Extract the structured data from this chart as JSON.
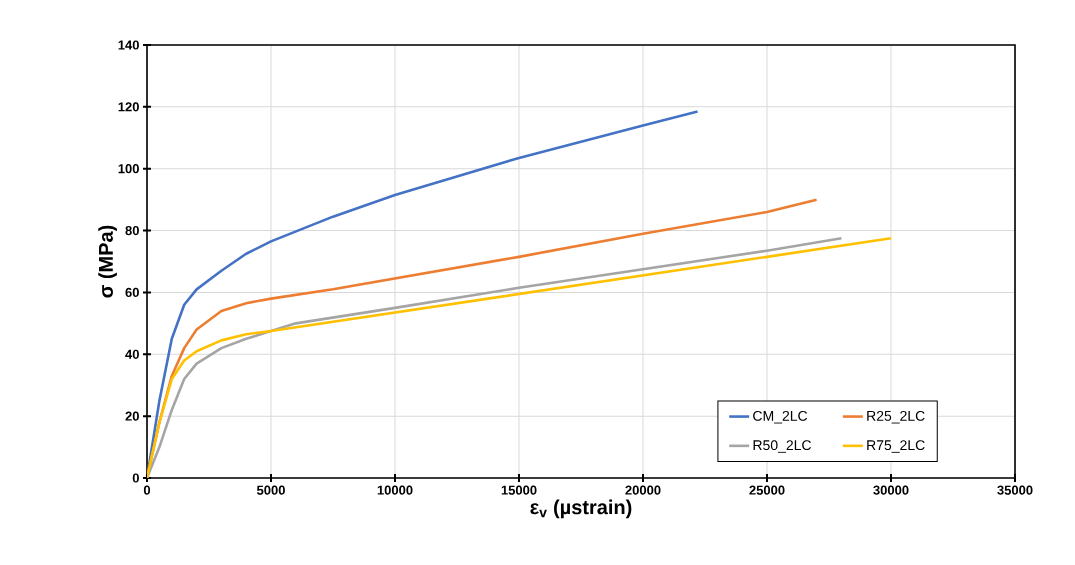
{
  "chart_data": {
    "type": "line",
    "xlabel": "ε$_{v}$ (µstrain)",
    "ylabel": "σ (MPa)",
    "xlim": [
      0,
      35000
    ],
    "ylim": [
      0,
      140
    ],
    "xticks": [
      0,
      5000,
      10000,
      15000,
      20000,
      25000,
      30000,
      35000
    ],
    "yticks": [
      0,
      20,
      40,
      60,
      80,
      100,
      120,
      140
    ],
    "grid": true,
    "legend": "bottom right",
    "marker": "none",
    "line_style": "solid",
    "series": [
      {
        "name": "CM_2LC",
        "color": "#4472c4",
        "x": [
          0,
          500,
          1000,
          1500,
          2000,
          3000,
          4000,
          5000,
          7500,
          10000,
          15000,
          20000,
          22200
        ],
        "values": [
          0,
          25,
          45,
          56,
          61,
          67,
          72.5,
          76.5,
          84.5,
          91.5,
          103.5,
          114,
          118.5
        ]
      },
      {
        "name": "R25_2LC",
        "color": "#ed7d31",
        "x": [
          0,
          500,
          1000,
          1500,
          2000,
          3000,
          4000,
          5000,
          7500,
          10000,
          15000,
          20000,
          25000,
          27000
        ],
        "values": [
          0,
          18,
          33,
          42,
          48,
          54,
          56.5,
          58,
          61,
          64.5,
          71.5,
          79,
          86,
          90
        ]
      },
      {
        "name": "R50_2LC",
        "color": "#a5a5a5",
        "x": [
          0,
          500,
          1000,
          1500,
          2000,
          3000,
          4000,
          5000,
          6000,
          10000,
          15000,
          20000,
          25000,
          28000
        ],
        "values": [
          0,
          10,
          22,
          32,
          37,
          42,
          45,
          47.5,
          50,
          55,
          61.5,
          67.5,
          73.5,
          77.5
        ]
      },
      {
        "name": "R75_2LC",
        "color": "#ffc000",
        "x": [
          0,
          500,
          1000,
          1500,
          2000,
          3000,
          4000,
          5000,
          10000,
          15000,
          20000,
          25000,
          30000
        ],
        "values": [
          0,
          18,
          32,
          38,
          41,
          44.5,
          46.5,
          47.5,
          53.5,
          59.5,
          65.5,
          71.5,
          77.5
        ]
      }
    ]
  }
}
